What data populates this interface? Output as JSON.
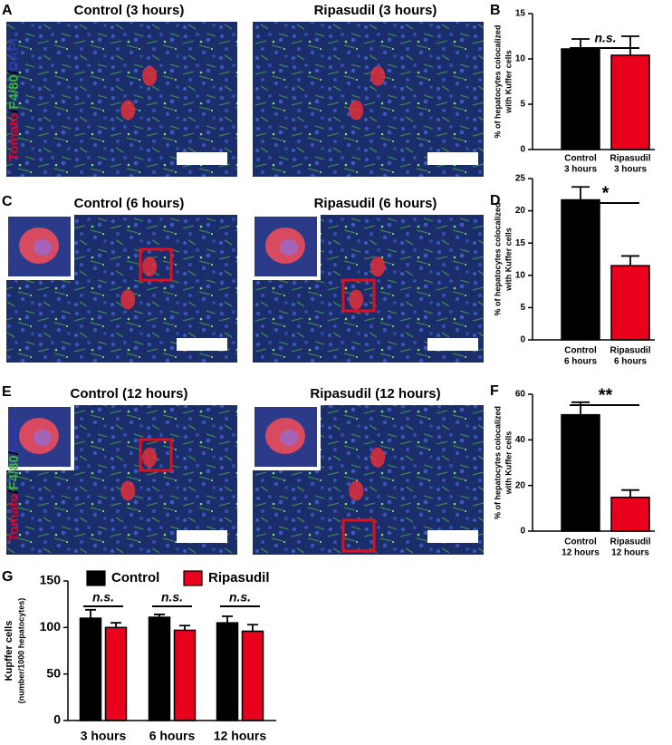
{
  "panels": [
    {
      "letter": "A",
      "titles": [
        "Control (3 hours)",
        "Ripasudil (3 hours)"
      ],
      "stain": [
        "Tomato",
        "/",
        "F4/80",
        "/",
        "DAPI"
      ]
    },
    {
      "letter": "C",
      "titles": [
        "Control (6 hours)",
        "Ripasudil (6 hours)"
      ]
    },
    {
      "letter": "E",
      "titles": [
        "Control (12 hours)",
        "Ripasudil (12 hours)"
      ],
      "stain": [
        "Tomato",
        "/",
        "F4/80",
        "/",
        "DAPI"
      ]
    }
  ],
  "chart_data": [
    {
      "type": "bar",
      "panel": "B",
      "ylabel": [
        "% of hepatocytes  colocalized",
        "with Kuffer cells"
      ],
      "categories": [
        [
          "Control",
          "3 hours"
        ],
        [
          "Ripasudil",
          "3 hours"
        ]
      ],
      "values": [
        11.1,
        10.4
      ],
      "errors": [
        1.1,
        2.1
      ],
      "colors": [
        "#000000",
        "#e8001c"
      ],
      "ylim": [
        0,
        15
      ],
      "yticks": [
        0,
        5,
        10,
        15
      ],
      "annotation": "n.s."
    },
    {
      "type": "bar",
      "panel": "D",
      "ylabel": [
        "% of hepatocytes  colocalized",
        "with Kuffer cells"
      ],
      "categories": [
        [
          "Control",
          "6 hours"
        ],
        [
          "Ripasudil",
          "6 hours"
        ]
      ],
      "values": [
        21.7,
        11.5
      ],
      "errors": [
        2.0,
        1.5
      ],
      "colors": [
        "#000000",
        "#e8001c"
      ],
      "ylim": [
        0,
        25
      ],
      "yticks": [
        0,
        5,
        10,
        15,
        20,
        25
      ],
      "annotation": "*"
    },
    {
      "type": "bar",
      "panel": "F",
      "ylabel": [
        "% of hepatocytes  colocalized",
        "with Kuffer cells"
      ],
      "categories": [
        [
          "Control",
          "12 hours"
        ],
        [
          "Ripasudil",
          "12 hours"
        ]
      ],
      "values": [
        51,
        14.8
      ],
      "errors": [
        5.5,
        3.2
      ],
      "colors": [
        "#000000",
        "#e8001c"
      ],
      "ylim": [
        0,
        60
      ],
      "yticks": [
        0,
        20,
        40,
        60
      ],
      "annotation": "**"
    },
    {
      "type": "grouped_bar",
      "panel": "G",
      "ylabel": [
        "Kupffer cells",
        "(number/1000 hepatocytes)"
      ],
      "categories": [
        "3 hours",
        "6 hours",
        "12 hours"
      ],
      "series": [
        {
          "name": "Control",
          "color": "#000000",
          "values": [
            110,
            111,
            105
          ],
          "errors": [
            9,
            3,
            7
          ]
        },
        {
          "name": "Ripasudil",
          "color": "#e8001c",
          "values": [
            100,
            97,
            96
          ],
          "errors": [
            5,
            5,
            7
          ]
        }
      ],
      "ylim": [
        0,
        150
      ],
      "yticks": [
        0,
        50,
        100,
        150
      ],
      "legend": "top",
      "annotations": [
        "n.s.",
        "n.s.",
        "n.s."
      ]
    }
  ]
}
